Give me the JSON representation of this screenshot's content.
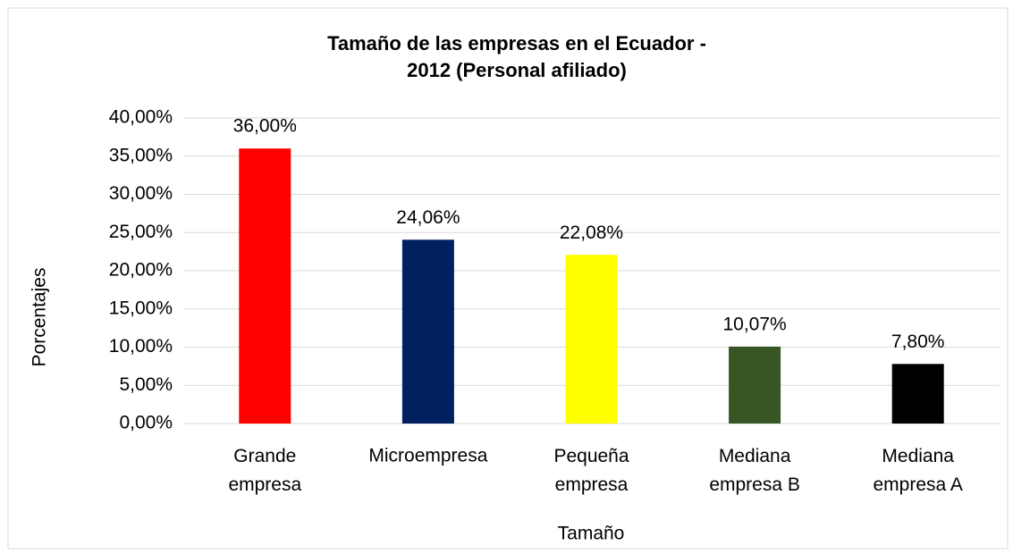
{
  "chart_data": {
    "type": "bar",
    "title": [
      "Tamaño de las empresas en el Ecuador -",
      "2012 (Personal afiliado)"
    ],
    "categories": [
      "Grande empresa",
      "Microempresa",
      "Pequeña empresa",
      "Mediana empresa B",
      "Mediana empresa A"
    ],
    "values": [
      36,
      24.06,
      22.08,
      10.07,
      7.8
    ],
    "value_labels": [
      "36,00%",
      "24,06%",
      "22,08%",
      "10,07%",
      "7,80%"
    ],
    "colors": [
      "#ff0000",
      "#002060",
      "#ffff00",
      "#375623",
      "#000000"
    ],
    "x_label": "Tamaño",
    "y_label": "Porcentajes",
    "ylim": [
      0,
      40
    ],
    "yticks": [
      {
        "value": 0,
        "label": "0,00%"
      },
      {
        "value": 5,
        "label": "5,00%"
      },
      {
        "value": 10,
        "label": "10,00%"
      },
      {
        "value": 15,
        "label": "15,00%"
      },
      {
        "value": 20,
        "label": "20,00%"
      },
      {
        "value": 25,
        "label": "25,00%"
      },
      {
        "value": 30,
        "label": "30,00%"
      },
      {
        "value": 35,
        "label": "35,00%"
      },
      {
        "value": 40,
        "label": "40,00%"
      }
    ],
    "grid": true
  }
}
